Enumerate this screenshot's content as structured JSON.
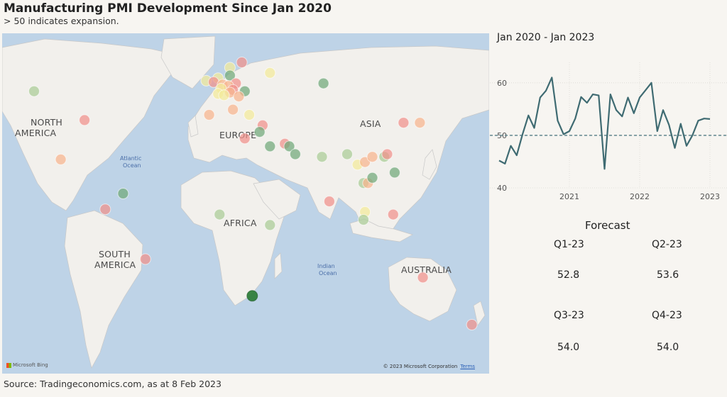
{
  "title": "Manufacturing PMI Development Since Jan 2020",
  "subtitle": "> 50 indicates expansion.",
  "source": "Source: Tradingeconomics.com, as at 8 Feb 2023",
  "map": {
    "labels": {
      "north_america": [
        "NORTH",
        "AMERICA"
      ],
      "south_america": [
        "SOUTH",
        "AMERICA"
      ],
      "europe": "EUROPE",
      "asia": "ASIA",
      "africa": "AFRICA",
      "australia": "AUSTRALIA",
      "atlantic": [
        "Atlantic",
        "Ocean"
      ],
      "indian": [
        "Indian",
        "Ocean"
      ]
    },
    "bing": "Microsoft Bing",
    "copyright": "© 2023 Microsoft Corporation",
    "terms": "Terms",
    "colors": {
      "red": "#f0908a",
      "orange": "#f6b48e",
      "yellow": "#f2ea9a",
      "lightgreen": "#a9cc96",
      "green": "#6fa878",
      "darkgreen": "#2f7d3b",
      "ocean": "#bed3e7",
      "land": "#f2f0ec"
    },
    "points": [
      {
        "lon": -122,
        "lat": 49,
        "c": "lightgreen"
      },
      {
        "lon": -88,
        "lat": 38,
        "c": "red"
      },
      {
        "lon": -104,
        "lat": 23,
        "c": "orange"
      },
      {
        "lon": -62,
        "lat": 10,
        "c": "green"
      },
      {
        "lon": -74,
        "lat": 4,
        "c": "red"
      },
      {
        "lon": -47,
        "lat": -15,
        "c": "red"
      },
      {
        "lon": 18,
        "lat": 60,
        "c": "red"
      },
      {
        "lon": 10,
        "lat": 58,
        "c": "yellow"
      },
      {
        "lon": 10,
        "lat": 55,
        "c": "green"
      },
      {
        "lon": 2,
        "lat": 54,
        "c": "yellow"
      },
      {
        "lon": -6,
        "lat": 53,
        "c": "yellow"
      },
      {
        "lon": -1,
        "lat": 52.5,
        "c": "red"
      },
      {
        "lon": 14,
        "lat": 52,
        "c": "red"
      },
      {
        "lon": 5,
        "lat": 51.5,
        "c": "orange"
      },
      {
        "lon": 9,
        "lat": 51,
        "c": "orange"
      },
      {
        "lon": 4,
        "lat": 50,
        "c": "yellow"
      },
      {
        "lon": 12,
        "lat": 49.5,
        "c": "red"
      },
      {
        "lon": 20,
        "lat": 49,
        "c": "green"
      },
      {
        "lon": 10,
        "lat": 48.5,
        "c": "orange"
      },
      {
        "lon": 2,
        "lat": 48,
        "c": "yellow"
      },
      {
        "lon": 6,
        "lat": 47.5,
        "c": "yellow"
      },
      {
        "lon": 16,
        "lat": 47,
        "c": "orange"
      },
      {
        "lon": 37,
        "lat": 56,
        "c": "yellow"
      },
      {
        "lon": -4,
        "lat": 40,
        "c": "orange"
      },
      {
        "lon": 12,
        "lat": 42,
        "c": "orange"
      },
      {
        "lon": 23,
        "lat": 40,
        "c": "yellow"
      },
      {
        "lon": 32,
        "lat": 36,
        "c": "red"
      },
      {
        "lon": 30,
        "lat": 33.5,
        "c": "green"
      },
      {
        "lon": 20,
        "lat": 31,
        "c": "red"
      },
      {
        "lon": 37,
        "lat": 28,
        "c": "green"
      },
      {
        "lon": 47,
        "lat": 29,
        "c": "red"
      },
      {
        "lon": 50,
        "lat": 28,
        "c": "green"
      },
      {
        "lon": 54,
        "lat": 25,
        "c": "green"
      },
      {
        "lon": 73,
        "lat": 52,
        "c": "green"
      },
      {
        "lon": 72,
        "lat": 24,
        "c": "lightgreen"
      },
      {
        "lon": 77,
        "lat": 7,
        "c": "red"
      },
      {
        "lon": 89,
        "lat": 25,
        "c": "lightgreen"
      },
      {
        "lon": 96,
        "lat": 21,
        "c": "yellow"
      },
      {
        "lon": 101,
        "lat": 22,
        "c": "orange"
      },
      {
        "lon": 100,
        "lat": 14,
        "c": "lightgreen"
      },
      {
        "lon": 103,
        "lat": 14,
        "c": "orange"
      },
      {
        "lon": 106,
        "lat": 24,
        "c": "orange"
      },
      {
        "lon": 106,
        "lat": 16,
        "c": "green"
      },
      {
        "lon": 114,
        "lat": 24,
        "c": "lightgreen"
      },
      {
        "lon": 116,
        "lat": 25,
        "c": "red"
      },
      {
        "lon": 121,
        "lat": 18,
        "c": "green"
      },
      {
        "lon": 101,
        "lat": 3,
        "c": "yellow"
      },
      {
        "lon": 100,
        "lat": 0,
        "c": "lightgreen"
      },
      {
        "lon": 120,
        "lat": 2,
        "c": "red"
      },
      {
        "lon": 127,
        "lat": 37,
        "c": "red"
      },
      {
        "lon": 138,
        "lat": 37,
        "c": "orange"
      },
      {
        "lon": 3,
        "lat": 2,
        "c": "lightgreen"
      },
      {
        "lon": 37,
        "lat": -2,
        "c": "lightgreen"
      },
      {
        "lon": 25,
        "lat": -29,
        "c": "darkgreen"
      },
      {
        "lon": 140,
        "lat": -22,
        "c": "red"
      },
      {
        "lon": 173,
        "lat": -40,
        "c": "red"
      }
    ]
  },
  "line": {
    "title": "Jan 2020 - Jan 2023"
  },
  "chart_data": {
    "type": "line",
    "title": "Jan 2020 - Jan 2023",
    "xlabel": "",
    "ylabel": "",
    "x": [
      "2020-01",
      "2020-02",
      "2020-03",
      "2020-04",
      "2020-05",
      "2020-06",
      "2020-07",
      "2020-08",
      "2020-09",
      "2020-10",
      "2020-11",
      "2020-12",
      "2021-01",
      "2021-02",
      "2021-03",
      "2021-04",
      "2021-05",
      "2021-06",
      "2021-07",
      "2021-08",
      "2021-09",
      "2021-10",
      "2021-11",
      "2021-12",
      "2022-01",
      "2022-02",
      "2022-03",
      "2022-04",
      "2022-05",
      "2022-06",
      "2022-07",
      "2022-08",
      "2022-09",
      "2022-10",
      "2022-11",
      "2022-12",
      "2023-01"
    ],
    "values": [
      45.2,
      44.6,
      48.0,
      46.2,
      50.2,
      53.8,
      51.4,
      57.2,
      58.5,
      61.0,
      52.8,
      50.2,
      50.8,
      53.2,
      57.3,
      56.2,
      57.8,
      57.6,
      43.6,
      57.8,
      54.8,
      53.6,
      57.2,
      54.2,
      57.2,
      58.6,
      60.0,
      50.8,
      54.8,
      52.0,
      47.6,
      52.2,
      48.0,
      50.0,
      52.8,
      53.2,
      53.1
    ],
    "reference_line": 50,
    "ylim": [
      40,
      62
    ],
    "yticks": [
      40,
      50,
      60
    ],
    "xticks": [
      {
        "label": "2021",
        "x": "2021-01"
      },
      {
        "label": "2022",
        "x": "2022-01"
      },
      {
        "label": "2023",
        "x": "2023-01"
      }
    ],
    "line_color": "#3f6b72",
    "grid": true
  },
  "forecast": {
    "title": "Forecast",
    "items": [
      {
        "q": "Q1-23",
        "v": "52.8"
      },
      {
        "q": "Q2-23",
        "v": "53.6"
      },
      {
        "q": "Q3-23",
        "v": "54.0"
      },
      {
        "q": "Q4-23",
        "v": "54.0"
      }
    ]
  }
}
